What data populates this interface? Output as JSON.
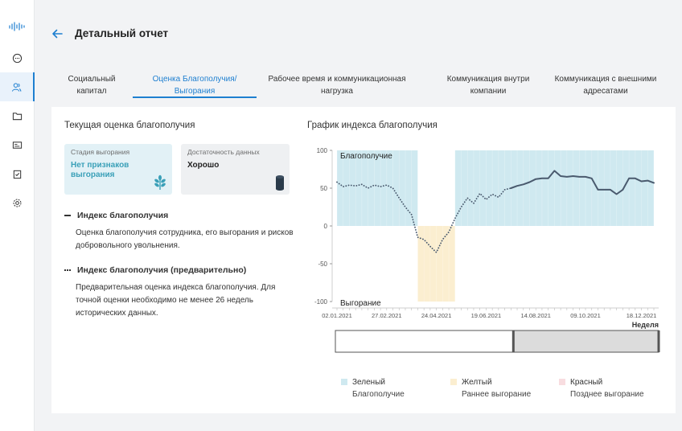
{
  "header": {
    "title": "Детальный отчет"
  },
  "tabs": [
    {
      "label": "Социальный капитал"
    },
    {
      "label": "Оценка Благополучия/ Выгорания"
    },
    {
      "label": "Рабочее время и коммуникационная нагрузка"
    },
    {
      "label": "Коммуникация внутри компании"
    },
    {
      "label": "Коммуникация с внешними адресатами"
    }
  ],
  "left": {
    "title": "Текущая оценка благополучия",
    "card1": {
      "label": "Стадия выгорания",
      "value": "Нет признаков выгорания",
      "icon": "sprout-icon"
    },
    "card2": {
      "label": "Достаточность данных",
      "value": "Хорошо",
      "icon": "data-cylinder-icon"
    },
    "legend1": {
      "title": "Индекс благополучия",
      "desc": "Оценка благополучия сотрудника, его выгорания и рисков добровольного увольнения."
    },
    "legend2": {
      "title": "Индекс благополучия (предварительно)",
      "desc": "Предварительная оценка индекса благополучия. Для точной оценки необходимо не менее 26 недель исторических данных."
    }
  },
  "chart": {
    "title": "График индекса благополучия"
  },
  "chart_data": {
    "type": "line",
    "ylim": [
      -100,
      100
    ],
    "yticks": [
      100,
      50,
      0,
      -50,
      -100
    ],
    "xlabel": "Неделя",
    "band_labels": {
      "top": "Благополучие",
      "bottom": "Выгорание"
    },
    "xticks": [
      "02.01.2021",
      "27.02.2021",
      "24.04.2021",
      "19.06.2021",
      "14.08.2021",
      "09.10.2021",
      "18.12.2021"
    ],
    "n_weeks": 52,
    "zones": [
      {
        "from_week": 0,
        "to_week": 13,
        "from_value": 0,
        "to_value": 100,
        "color": "#cfe9f0"
      },
      {
        "from_week": 13,
        "to_week": 19,
        "from_value": -100,
        "to_value": 0,
        "color": "#fbeed0"
      },
      {
        "from_week": 19,
        "to_week": 51,
        "from_value": 0,
        "to_value": 100,
        "color": "#cfe9f0"
      }
    ],
    "series": [
      {
        "style": "dotted",
        "values": [
          [
            0,
            58
          ],
          [
            1,
            52
          ],
          [
            2,
            54
          ],
          [
            3,
            53
          ],
          [
            4,
            55
          ],
          [
            5,
            50
          ],
          [
            6,
            54
          ],
          [
            7,
            52
          ],
          [
            8,
            54
          ],
          [
            9,
            50
          ],
          [
            10,
            37
          ],
          [
            11,
            25
          ],
          [
            12,
            15
          ],
          [
            13,
            -15
          ],
          [
            14,
            -18
          ],
          [
            15,
            -27
          ],
          [
            16,
            -35
          ],
          [
            17,
            -18
          ],
          [
            18,
            -8
          ],
          [
            19,
            10
          ],
          [
            20,
            25
          ],
          [
            21,
            37
          ],
          [
            22,
            30
          ],
          [
            23,
            43
          ],
          [
            24,
            35
          ],
          [
            25,
            42
          ],
          [
            26,
            38
          ],
          [
            27,
            48
          ],
          [
            28,
            50
          ]
        ]
      },
      {
        "style": "solid",
        "values": [
          [
            28,
            50
          ],
          [
            29,
            53
          ],
          [
            30,
            55
          ],
          [
            31,
            58
          ],
          [
            32,
            62
          ],
          [
            33,
            63
          ],
          [
            34,
            63
          ],
          [
            35,
            73
          ],
          [
            36,
            66
          ],
          [
            37,
            65
          ],
          [
            38,
            66
          ],
          [
            39,
            65
          ],
          [
            40,
            65
          ],
          [
            41,
            63
          ],
          [
            42,
            48
          ],
          [
            43,
            48
          ],
          [
            44,
            48
          ],
          [
            45,
            42
          ],
          [
            46,
            48
          ],
          [
            47,
            63
          ],
          [
            48,
            63
          ],
          [
            49,
            59
          ],
          [
            50,
            60
          ],
          [
            51,
            57
          ]
        ]
      }
    ]
  },
  "color_legend": [
    {
      "name": "Зеленый",
      "desc": "Благополучие",
      "color": "#cfe9f0"
    },
    {
      "name": "Желтый",
      "desc": "Раннее выгорание",
      "color": "#fbeed0"
    },
    {
      "name": "Красный",
      "desc": "Позднее выгорание",
      "color": "#f8dde0"
    }
  ]
}
